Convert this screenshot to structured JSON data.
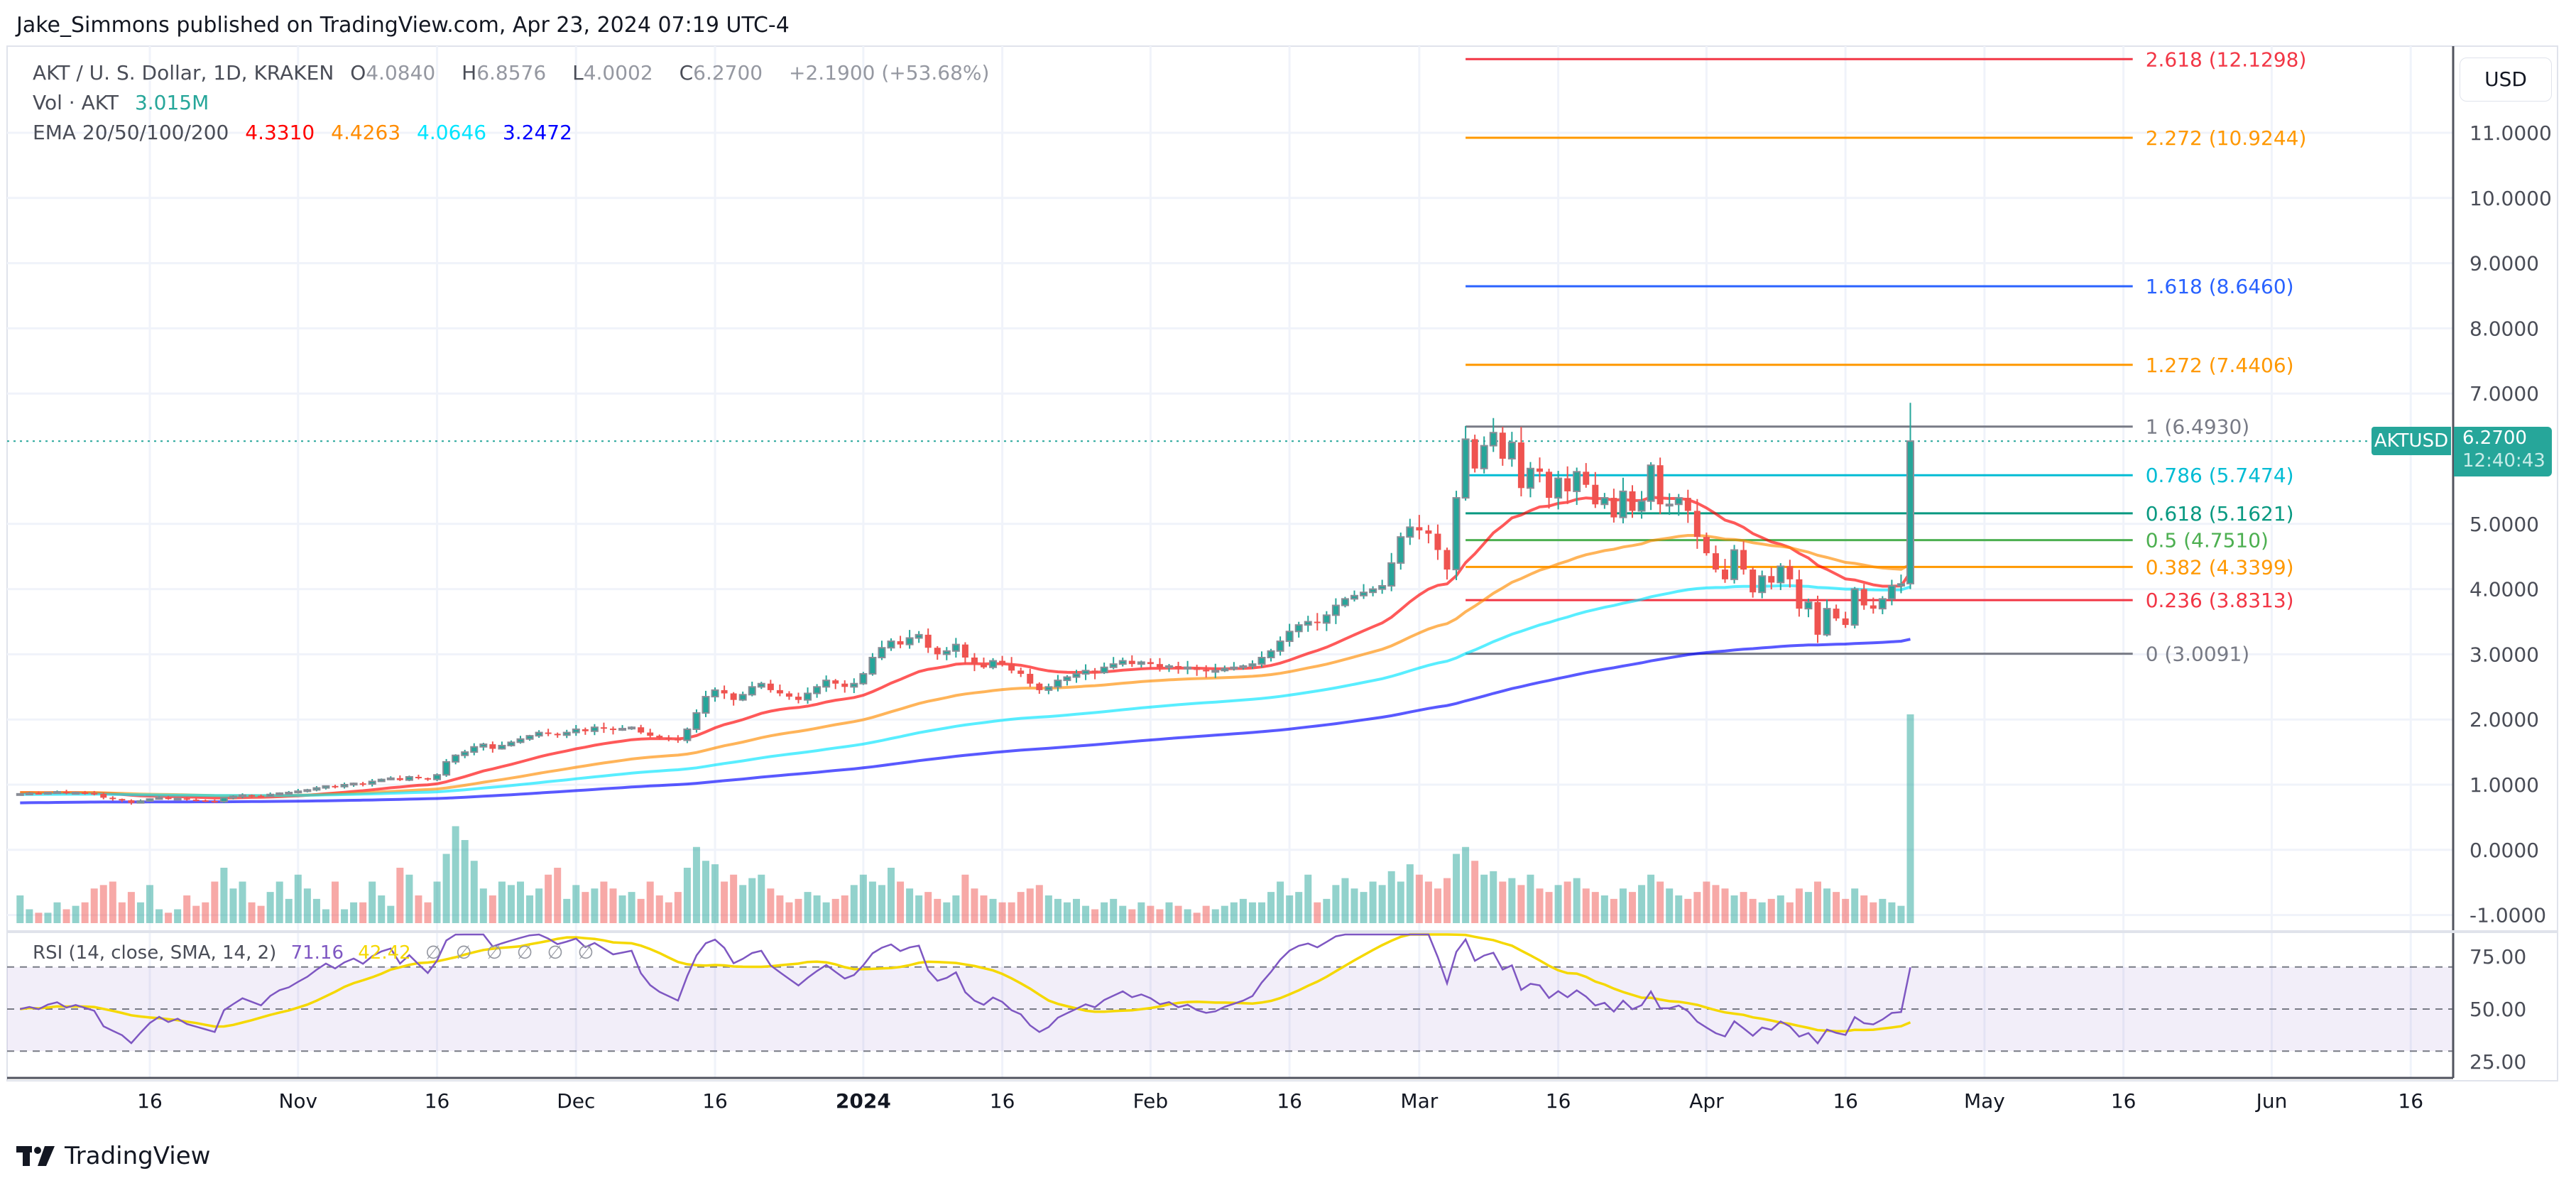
{
  "header": {
    "published": "Jake_Simmons published on TradingView.com, Apr 23, 2024 07:19 UTC-4"
  },
  "legend": {
    "symbol": "AKT / U. S. Dollar, 1D, KRAKEN",
    "o_label": "O",
    "o": "4.0840",
    "h_label": "H",
    "h": "6.8576",
    "l_label": "L",
    "l": "4.0002",
    "c_label": "C",
    "c": "6.2700",
    "change": "+2.1900 (+53.68%)",
    "vol_label": "Vol · AKT",
    "vol": "3.015M",
    "ema_label": "EMA 20/50/100/200",
    "ema20": "4.3310",
    "ema50": "4.4263",
    "ema100": "4.0646",
    "ema200": "3.2472"
  },
  "rsi_legend": {
    "label": "RSI (14, close, SMA, 14, 2)",
    "rsi": "71.16",
    "sma": "42.42",
    "na": [
      "∅",
      "∅",
      "∅",
      "∅",
      "∅",
      "∅"
    ]
  },
  "price_axis": {
    "currency": "USD",
    "symbol_tag": "AKTUSD",
    "last_price": "6.2700",
    "countdown": "12:40:43"
  },
  "footer": {
    "brand": "TradingView"
  },
  "colors": {
    "up": "#26a69a",
    "down": "#ef5350",
    "ema20": "#ff0000",
    "ema50": "#ff8c00",
    "ema100": "#00e5ff",
    "ema200": "#0000ff",
    "rsi": "#7e57c2",
    "rsi_sma": "#f5d800"
  },
  "chart_data": {
    "type": "candlestick",
    "title": "AKT / U. S. Dollar, 1D, KRAKEN",
    "start_date": "2023-10-02",
    "ylim": [
      -1.2,
      12.3
    ],
    "price_ticks": [
      {
        "v": 11,
        "label": "11.0000"
      },
      {
        "v": 10,
        "label": "10.0000"
      },
      {
        "v": 9,
        "label": "9.0000"
      },
      {
        "v": 8,
        "label": "8.0000"
      },
      {
        "v": 7,
        "label": "7.0000"
      },
      {
        "v": 5,
        "label": "5.0000"
      },
      {
        "v": 4,
        "label": "4.0000"
      },
      {
        "v": 3,
        "label": "3.0000"
      },
      {
        "v": 2,
        "label": "2.0000"
      },
      {
        "v": 1,
        "label": "1.0000"
      },
      {
        "v": 0,
        "label": "0.0000"
      },
      {
        "v": -1,
        "label": "-1.0000"
      }
    ],
    "rsi_ticks": [
      {
        "v": 75,
        "label": "75.00"
      },
      {
        "v": 50,
        "label": "50.00"
      },
      {
        "v": 25,
        "label": "25.00"
      }
    ],
    "time_axis": [
      {
        "day": 14,
        "label": "16"
      },
      {
        "day": 30,
        "label": "Nov"
      },
      {
        "day": 45,
        "label": "16"
      },
      {
        "day": 60,
        "label": "Dec"
      },
      {
        "day": 75,
        "label": "16"
      },
      {
        "day": 91,
        "label": "2024"
      },
      {
        "day": 106,
        "label": "16"
      },
      {
        "day": 122,
        "label": "Feb"
      },
      {
        "day": 137,
        "label": "16"
      },
      {
        "day": 151,
        "label": "Mar"
      },
      {
        "day": 166,
        "label": "16"
      },
      {
        "day": 182,
        "label": "Apr"
      },
      {
        "day": 197,
        "label": "16"
      },
      {
        "day": 212,
        "label": "May"
      },
      {
        "day": 227,
        "label": "16"
      },
      {
        "day": 243,
        "label": "Jun"
      },
      {
        "day": 258,
        "label": "16"
      }
    ],
    "closes": [
      0.86,
      0.87,
      0.86,
      0.88,
      0.89,
      0.87,
      0.88,
      0.87,
      0.86,
      0.8,
      0.78,
      0.76,
      0.72,
      0.75,
      0.78,
      0.8,
      0.78,
      0.79,
      0.77,
      0.76,
      0.75,
      0.74,
      0.8,
      0.82,
      0.84,
      0.83,
      0.82,
      0.85,
      0.87,
      0.88,
      0.9,
      0.92,
      0.95,
      0.98,
      0.97,
      1.0,
      1.02,
      1.01,
      1.05,
      1.08,
      1.1,
      1.07,
      1.12,
      1.1,
      1.08,
      1.15,
      1.35,
      1.45,
      1.5,
      1.58,
      1.62,
      1.55,
      1.6,
      1.65,
      1.7,
      1.75,
      1.8,
      1.78,
      1.76,
      1.8,
      1.85,
      1.82,
      1.88,
      1.86,
      1.84,
      1.86,
      1.88,
      1.8,
      1.75,
      1.72,
      1.7,
      1.68,
      1.85,
      2.1,
      2.35,
      2.45,
      2.4,
      2.3,
      2.38,
      2.5,
      2.55,
      2.45,
      2.4,
      2.35,
      2.3,
      2.4,
      2.5,
      2.6,
      2.55,
      2.5,
      2.55,
      2.7,
      2.95,
      3.1,
      3.2,
      3.15,
      3.25,
      3.3,
      3.1,
      3.0,
      3.05,
      3.15,
      2.95,
      2.85,
      2.8,
      2.9,
      2.85,
      2.75,
      2.7,
      2.55,
      2.45,
      2.5,
      2.6,
      2.65,
      2.7,
      2.75,
      2.72,
      2.8,
      2.85,
      2.9,
      2.85,
      2.88,
      2.85,
      2.8,
      2.82,
      2.78,
      2.8,
      2.76,
      2.74,
      2.75,
      2.78,
      2.8,
      2.82,
      2.85,
      2.95,
      3.05,
      3.2,
      3.35,
      3.45,
      3.5,
      3.48,
      3.6,
      3.75,
      3.85,
      3.9,
      3.95,
      4.0,
      4.05,
      4.4,
      4.8,
      4.95,
      4.9,
      4.85,
      4.6,
      4.3,
      5.4,
      6.3,
      5.85,
      6.2,
      6.4,
      6.0,
      6.25,
      5.55,
      5.85,
      5.8,
      5.4,
      5.7,
      5.5,
      5.8,
      5.6,
      5.3,
      5.4,
      5.1,
      5.5,
      5.2,
      5.35,
      5.9,
      5.3,
      5.3,
      5.4,
      5.2,
      4.8,
      4.55,
      4.3,
      4.15,
      4.6,
      4.3,
      3.95,
      4.2,
      4.1,
      4.35,
      4.15,
      3.7,
      3.8,
      3.3,
      3.7,
      3.55,
      3.45,
      4.0,
      3.75,
      3.7,
      3.85,
      4.05,
      4.08,
      6.27
    ],
    "last_candle": {
      "o": 4.084,
      "h": 6.8576,
      "l": 4.0002,
      "c": 6.27
    },
    "volumes_m": [
      0.4,
      0.2,
      0.15,
      0.15,
      0.3,
      0.2,
      0.25,
      0.3,
      0.5,
      0.55,
      0.6,
      0.3,
      0.45,
      0.3,
      0.55,
      0.2,
      0.15,
      0.2,
      0.4,
      0.25,
      0.3,
      0.6,
      0.8,
      0.5,
      0.6,
      0.3,
      0.25,
      0.45,
      0.6,
      0.35,
      0.7,
      0.5,
      0.35,
      0.2,
      0.6,
      0.2,
      0.3,
      0.3,
      0.6,
      0.4,
      0.25,
      0.8,
      0.7,
      0.4,
      0.3,
      0.6,
      1.0,
      1.4,
      1.2,
      0.9,
      0.5,
      0.4,
      0.6,
      0.55,
      0.6,
      0.4,
      0.5,
      0.7,
      0.8,
      0.35,
      0.55,
      0.45,
      0.5,
      0.6,
      0.5,
      0.4,
      0.45,
      0.35,
      0.6,
      0.4,
      0.3,
      0.45,
      0.8,
      1.1,
      0.9,
      0.85,
      0.6,
      0.7,
      0.55,
      0.65,
      0.7,
      0.5,
      0.4,
      0.3,
      0.35,
      0.45,
      0.4,
      0.3,
      0.35,
      0.4,
      0.55,
      0.7,
      0.6,
      0.55,
      0.8,
      0.6,
      0.5,
      0.4,
      0.45,
      0.35,
      0.3,
      0.4,
      0.7,
      0.5,
      0.4,
      0.35,
      0.3,
      0.3,
      0.45,
      0.5,
      0.55,
      0.4,
      0.35,
      0.3,
      0.35,
      0.25,
      0.2,
      0.3,
      0.35,
      0.25,
      0.2,
      0.3,
      0.25,
      0.2,
      0.3,
      0.25,
      0.2,
      0.15,
      0.25,
      0.2,
      0.25,
      0.3,
      0.35,
      0.3,
      0.3,
      0.45,
      0.6,
      0.4,
      0.45,
      0.7,
      0.3,
      0.35,
      0.55,
      0.65,
      0.5,
      0.45,
      0.6,
      0.55,
      0.75,
      0.6,
      0.85,
      0.7,
      0.6,
      0.5,
      0.65,
      1.0,
      1.1,
      0.9,
      0.7,
      0.75,
      0.6,
      0.65,
      0.55,
      0.7,
      0.5,
      0.45,
      0.55,
      0.6,
      0.65,
      0.5,
      0.45,
      0.4,
      0.35,
      0.5,
      0.45,
      0.55,
      0.7,
      0.6,
      0.5,
      0.4,
      0.35,
      0.45,
      0.6,
      0.55,
      0.5,
      0.4,
      0.45,
      0.35,
      0.3,
      0.35,
      0.4,
      0.3,
      0.5,
      0.45,
      0.6,
      0.5,
      0.45,
      0.35,
      0.5,
      0.4,
      0.3,
      0.35,
      0.3,
      0.25,
      3.015
    ],
    "ema_seeds": {
      "ema20": 0.88,
      "ema50": 0.88,
      "ema100": 0.85,
      "ema200": 0.72
    },
    "rsi": {
      "length": 14,
      "sma_length": 14,
      "upper": 70,
      "middle": 50,
      "lower": 30
    },
    "fib": {
      "anchor_start_day": 156,
      "anchor_end_day": 228,
      "levels": [
        {
          "ratio": 2.618,
          "price": 12.1298,
          "label": "2.618 (12.1298)",
          "color": "#f23645"
        },
        {
          "ratio": 2.272,
          "price": 10.9244,
          "label": "2.272 (10.9244)",
          "color": "#ff9800"
        },
        {
          "ratio": 1.618,
          "price": 8.646,
          "label": "1.618 (8.6460)",
          "color": "#2962ff"
        },
        {
          "ratio": 1.272,
          "price": 7.4406,
          "label": "1.272 (7.4406)",
          "color": "#ff9800"
        },
        {
          "ratio": 1,
          "price": 6.493,
          "label": "1 (6.4930)",
          "color": "#787b86"
        },
        {
          "ratio": 0.786,
          "price": 5.7474,
          "label": "0.786 (5.7474)",
          "color": "#00bcd4"
        },
        {
          "ratio": 0.618,
          "price": 5.1621,
          "label": "0.618 (5.1621)",
          "color": "#089981"
        },
        {
          "ratio": 0.5,
          "price": 4.751,
          "label": "0.5 (4.7510)",
          "color": "#4caf50"
        },
        {
          "ratio": 0.382,
          "price": 4.3399,
          "label": "0.382 (4.3399)",
          "color": "#ff9800"
        },
        {
          "ratio": 0.236,
          "price": 3.8313,
          "label": "0.236 (3.8313)",
          "color": "#f23645"
        },
        {
          "ratio": 0,
          "price": 3.0091,
          "label": "0 (3.0091)",
          "color": "#787b86"
        }
      ]
    }
  }
}
